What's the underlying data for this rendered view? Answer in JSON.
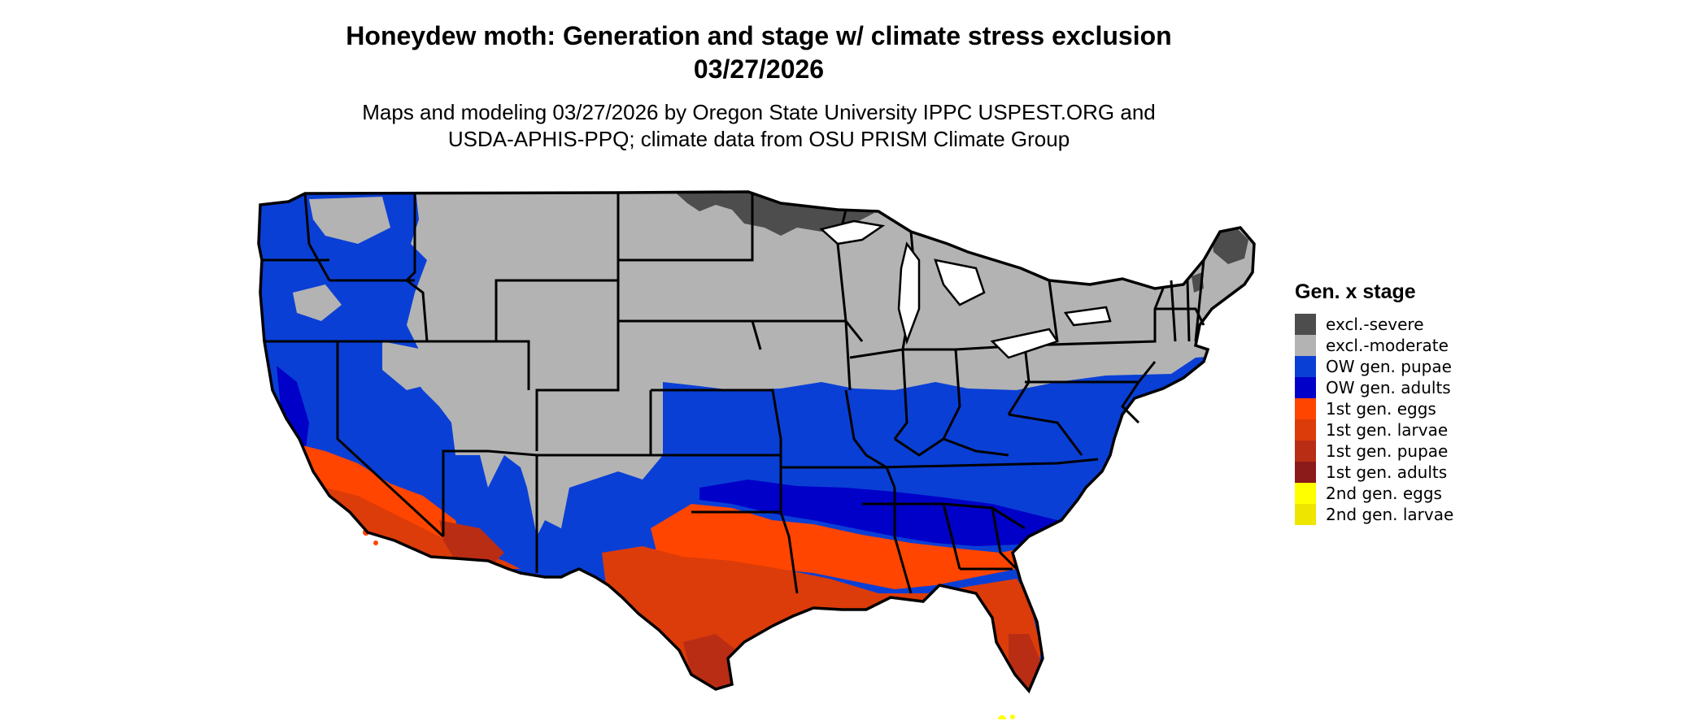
{
  "header": {
    "title_line1": "Honeydew moth: Generation and stage w/ climate stress exclusion",
    "title_line2": "03/27/2026",
    "subtitle_line1": "Maps and modeling 03/27/2026 by Oregon State University IPPC USPEST.ORG and",
    "subtitle_line2": "USDA-APHIS-PPQ; climate data from OSU PRISM Climate Group"
  },
  "legend": {
    "title": "Gen. x stage",
    "items": [
      {
        "label": "excl.-severe",
        "color": "#4d4d4d"
      },
      {
        "label": "excl.-moderate",
        "color": "#b3b3b3"
      },
      {
        "label": "OW gen. pupae",
        "color": "#0a3fd6"
      },
      {
        "label": "OW gen. adults",
        "color": "#0000c8"
      },
      {
        "label": "1st gen. eggs",
        "color": "#ff4500"
      },
      {
        "label": "1st gen. larvae",
        "color": "#dc3c0a"
      },
      {
        "label": "1st gen. pupae",
        "color": "#b92d14"
      },
      {
        "label": "1st gen. adults",
        "color": "#8b1a1a"
      },
      {
        "label": "2nd gen. eggs",
        "color": "#ffff00"
      },
      {
        "label": "2nd gen. larvae",
        "color": "#eee600"
      }
    ]
  },
  "map": {
    "colors": {
      "severe": "#4d4d4d",
      "moderate": "#b3b3b3",
      "ow_pupae": "#0a3fd6",
      "ow_adults": "#0000c8",
      "eggs1": "#ff4500",
      "larvae1": "#dc3c0a",
      "pupae1": "#b92d14",
      "gen2_eggs": "#ffff00",
      "border": "#000000"
    }
  }
}
